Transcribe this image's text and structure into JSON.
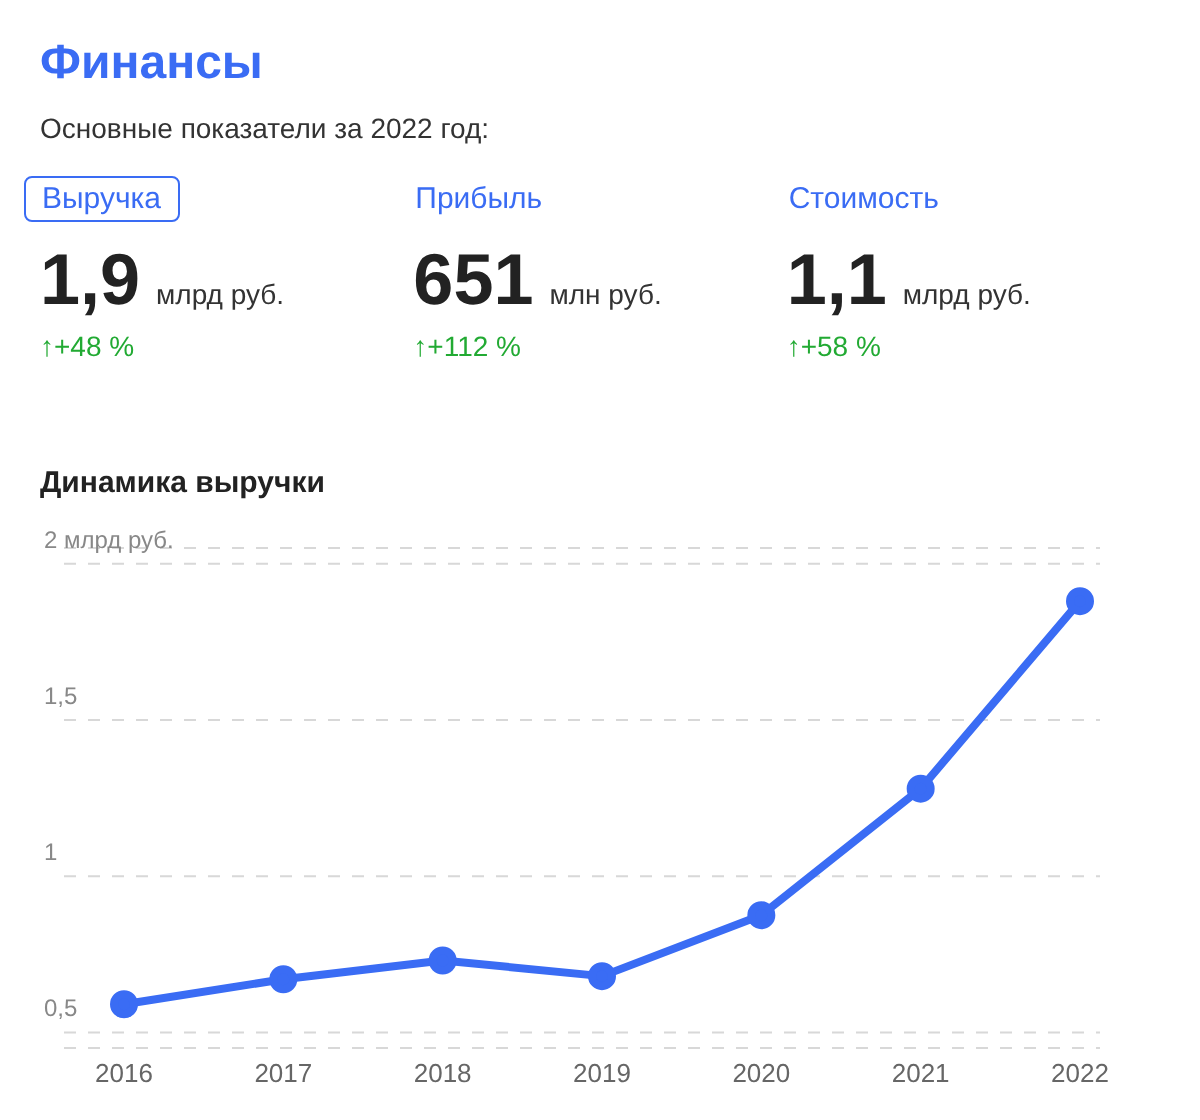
{
  "chart_data": [
    {
      "type": "other",
      "title": "Финансы",
      "subtitle": "Основные показатели за 2022 год:",
      "annotations": [
        "Выручка",
        "1,9",
        "млрд руб.",
        "↑+48 %",
        "Прибыль",
        "651",
        "млн руб.",
        "↑+112 %",
        "Стоимость",
        "1,1",
        "млрд руб.",
        "↑+58 %"
      ]
    },
    {
      "type": "line",
      "title": "Динамика выручки",
      "categories": [
        "2016",
        "2017",
        "2018",
        "2019",
        "2020",
        "2021",
        "2022"
      ],
      "series": [
        {
          "color": "#3a6cf4",
          "values": [
            0.59,
            0.67,
            0.73,
            0.68,
            0.875,
            1.28,
            1.88
          ]
        }
      ],
      "ylim": [
        0.45,
        2.05
      ],
      "yticks": [
        {
          "value": 0.5,
          "label": "0,5"
        },
        {
          "value": 1,
          "label": "1"
        },
        {
          "value": 1.5,
          "label": "1,5"
        },
        {
          "value": 2,
          "label": "2 млрд руб."
        }
      ],
      "grid": "y",
      "marker": "circle",
      "line_style": "solid"
    }
  ]
}
